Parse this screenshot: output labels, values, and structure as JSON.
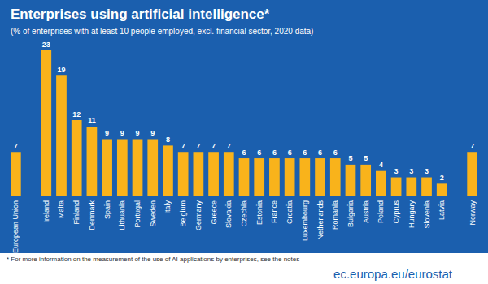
{
  "chart_data": {
    "type": "bar",
    "title": "Enterprises using artificial intelligence*",
    "subtitle": "(% of enterprises with at least 10 people employed, excl. financial sector, 2020 data)",
    "footnote": "* For more information on the measurement of the use of AI applications by enterprises, see the notes",
    "source": "ec.europa.eu/eurostat",
    "categories": [
      "European Union",
      null,
      "Ireland",
      "Malta",
      "Finland",
      "Denmark",
      "Spain",
      "Lithuania",
      "Portugal",
      "Sweden",
      "Italy",
      "Belgium",
      "Germany",
      "Greece",
      "Slovakia",
      "Czechia",
      "Estonia",
      "France",
      "Croatia",
      "Luxembourg",
      "Netherlands",
      "Romania",
      "Bulgaria",
      "Austria",
      "Poland",
      "Cyprus",
      "Hungary",
      "Slovenia",
      "Latvia",
      null,
      "Norway"
    ],
    "values": [
      7,
      null,
      23,
      19,
      12,
      11,
      9,
      9,
      9,
      9,
      8,
      7,
      7,
      7,
      7,
      6,
      6,
      6,
      6,
      6,
      6,
      6,
      5,
      5,
      4,
      3,
      3,
      3,
      2,
      null,
      7
    ],
    "color": "#f9b31b",
    "ylim": [
      0,
      23
    ],
    "grid": false,
    "data_labels": true,
    "tick_labels": "x"
  }
}
